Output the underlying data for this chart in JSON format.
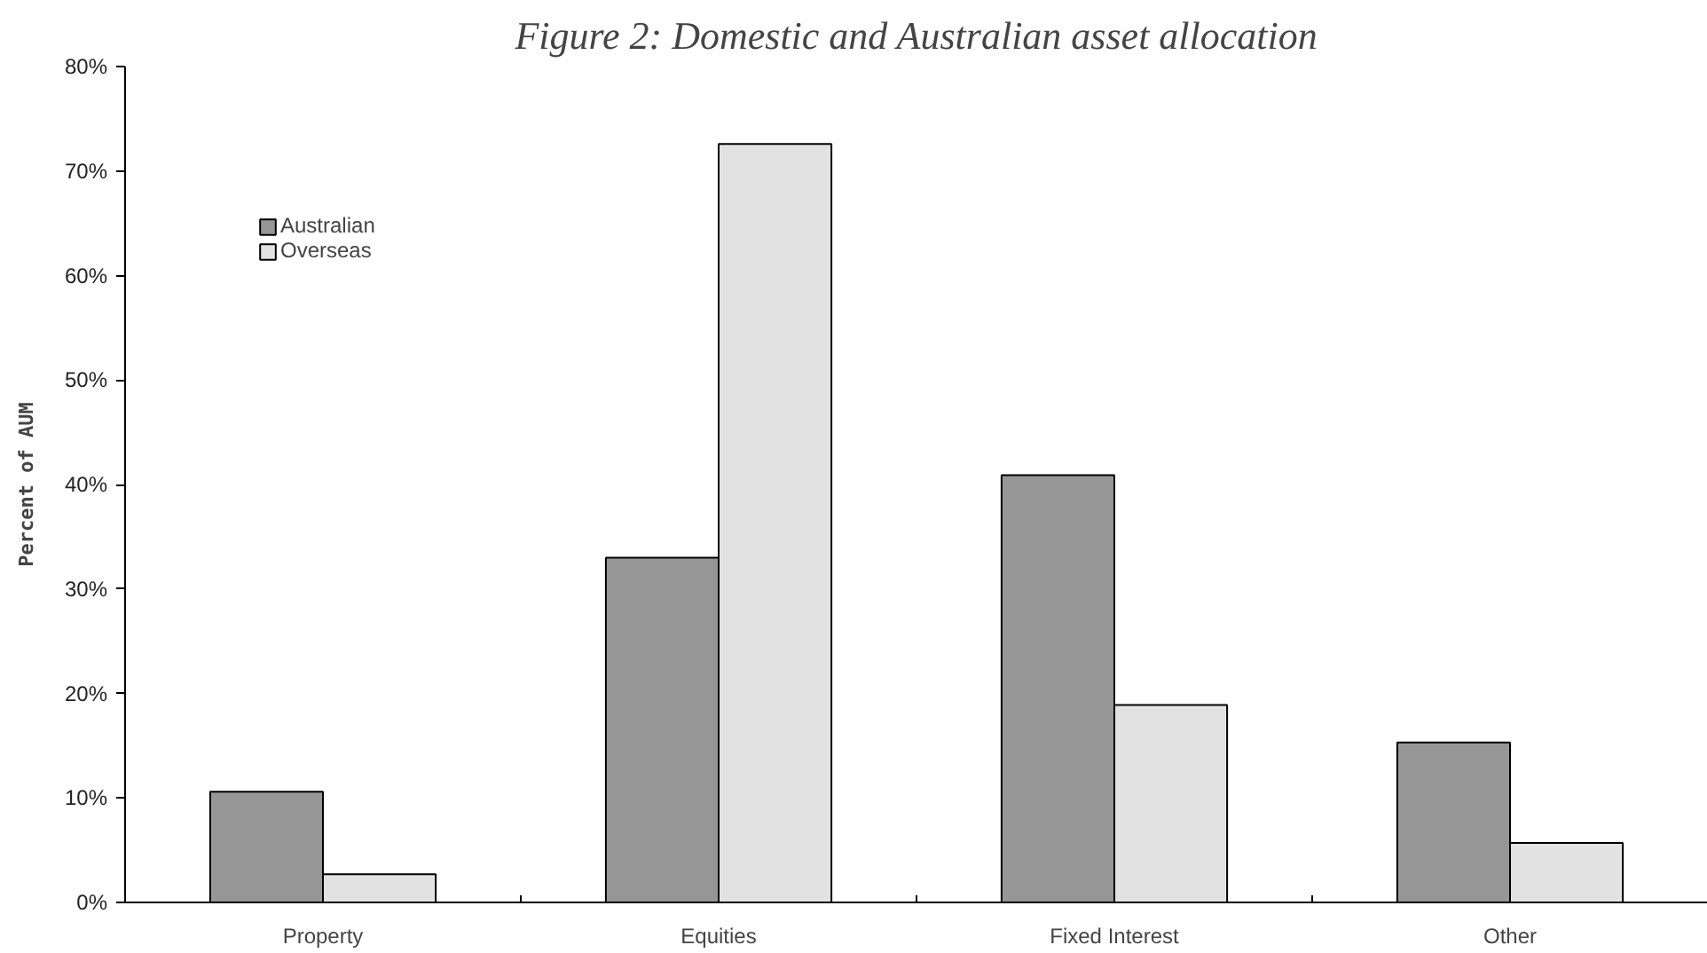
{
  "chart_data": {
    "type": "bar",
    "title": "Figure 2: Domestic and Australian asset allocation",
    "ylabel": "Percent of AUM",
    "categories": [
      "Property",
      "Equities",
      "Fixed Interest",
      "Other"
    ],
    "series": [
      {
        "name": "Australian",
        "color": "#969696",
        "values": [
          10.6,
          33,
          40.9,
          15.3
        ]
      },
      {
        "name": "Overseas",
        "color": "#e2e2e2",
        "values": [
          2.7,
          72.6,
          18.9,
          5.7
        ]
      }
    ],
    "ylim": [
      0,
      80
    ],
    "yticks": [
      {
        "value": 0,
        "label": "0%"
      },
      {
        "value": 10,
        "label": "10%"
      },
      {
        "value": 20,
        "label": "20%"
      },
      {
        "value": 30,
        "label": "30%"
      },
      {
        "value": 40,
        "label": "40%"
      },
      {
        "value": 50,
        "label": "50%"
      },
      {
        "value": 60,
        "label": "60%"
      },
      {
        "value": 70,
        "label": "70%"
      },
      {
        "value": 80,
        "label": "80%"
      }
    ],
    "grid": false,
    "legend": "top left"
  }
}
